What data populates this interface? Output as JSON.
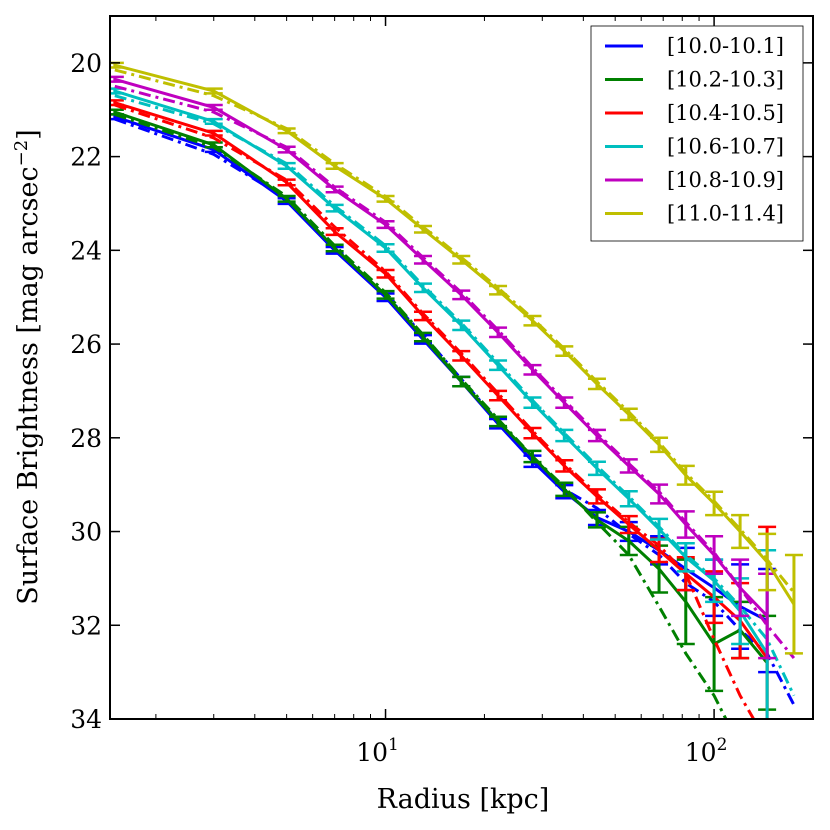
{
  "chart_data": {
    "type": "line",
    "title": "",
    "xlabel": "Radius [kpc]",
    "ylabel": "Surface Brightness [mag arcsec",
    "ylabel_sup": "−2",
    "ylabel_close": "]",
    "x_scale": "log",
    "xlim": [
      1.45,
      200
    ],
    "ylim": [
      34,
      19
    ],
    "y_inverted": true,
    "grid": false,
    "legend_position": "top-right",
    "x_tick_labels": [
      {
        "value": 10,
        "base": "10",
        "exp": "1"
      },
      {
        "value": 100,
        "base": "10",
        "exp": "2"
      }
    ],
    "y_ticks": [
      20,
      22,
      24,
      26,
      28,
      30,
      32,
      34
    ],
    "x": [
      1.5,
      3.0,
      5.0,
      7.0,
      10.0,
      13.0,
      17.0,
      22.0,
      28.0,
      35.0,
      44.0,
      55.0,
      68.0,
      82.0,
      100.0,
      120.0,
      145.0,
      175.0
    ],
    "series": [
      {
        "name": "[10.0-10.1]",
        "color": "#0000ff",
        "values": [
          21.15,
          21.85,
          22.95,
          24.0,
          25.0,
          25.9,
          26.8,
          27.7,
          28.5,
          29.15,
          29.7,
          30.0,
          30.4,
          30.8,
          31.2,
          31.6,
          31.9,
          null
        ],
        "errors": [
          0.05,
          0.05,
          0.06,
          0.07,
          0.08,
          0.09,
          0.1,
          0.1,
          0.12,
          0.14,
          0.16,
          0.2,
          0.3,
          0.45,
          0.6,
          0.9,
          1.1,
          null
        ],
        "dashdot": [
          21.2,
          21.95,
          22.9,
          23.95,
          24.95,
          25.8,
          26.75,
          27.65,
          28.45,
          29.1,
          29.5,
          30.05,
          30.5,
          31.1,
          31.5,
          32.1,
          32.6,
          33.7
        ]
      },
      {
        "name": "[10.2-10.3]",
        "color": "#008000",
        "values": [
          21.05,
          21.75,
          22.9,
          23.95,
          24.95,
          25.85,
          26.8,
          27.65,
          28.4,
          29.1,
          29.75,
          30.2,
          30.8,
          31.5,
          32.4,
          32.1,
          32.8,
          null
        ],
        "errors": [
          0.05,
          0.05,
          0.06,
          0.07,
          0.08,
          0.09,
          0.1,
          0.1,
          0.12,
          0.14,
          0.16,
          0.3,
          0.5,
          0.9,
          1.0,
          0.6,
          1.0,
          null
        ],
        "dashdot": [
          21.1,
          21.8,
          22.85,
          23.9,
          24.9,
          25.8,
          26.75,
          27.6,
          28.4,
          29.05,
          29.8,
          30.5,
          31.6,
          32.6,
          33.5,
          34.6,
          36.0,
          null
        ]
      },
      {
        "name": "[10.4-10.5]",
        "color": "#ff0000",
        "values": [
          20.85,
          21.5,
          22.55,
          23.6,
          24.5,
          25.4,
          26.25,
          27.1,
          27.9,
          28.6,
          29.25,
          29.85,
          30.4,
          30.9,
          31.4,
          31.9,
          32.7,
          null
        ],
        "errors": [
          0.05,
          0.05,
          0.06,
          0.07,
          0.08,
          0.09,
          0.1,
          0.1,
          0.11,
          0.12,
          0.15,
          0.18,
          0.25,
          0.35,
          0.55,
          0.8,
          2.8,
          null
        ],
        "dashdot": [
          20.9,
          21.6,
          22.5,
          23.5,
          24.45,
          25.35,
          26.2,
          27.05,
          27.85,
          28.55,
          29.2,
          29.8,
          30.3,
          30.9,
          32.3,
          33.5,
          34.5,
          null
        ]
      },
      {
        "name": "[10.6-10.7]",
        "color": "#00bfbf",
        "values": [
          20.6,
          21.25,
          22.2,
          23.1,
          23.95,
          24.8,
          25.6,
          26.45,
          27.25,
          27.95,
          28.65,
          29.3,
          29.95,
          30.55,
          31.05,
          31.7,
          32.6,
          null
        ],
        "errors": [
          0.05,
          0.05,
          0.06,
          0.07,
          0.08,
          0.09,
          0.1,
          0.1,
          0.11,
          0.12,
          0.14,
          0.16,
          0.22,
          0.3,
          0.45,
          0.7,
          2.2,
          null
        ],
        "dashdot": [
          20.7,
          21.3,
          22.15,
          23.05,
          23.9,
          24.75,
          25.55,
          26.4,
          27.2,
          27.9,
          28.6,
          29.25,
          29.9,
          30.5,
          31.0,
          31.6,
          32.3,
          33.5
        ]
      },
      {
        "name": "[10.8-10.9]",
        "color": "#bf00bf",
        "values": [
          20.35,
          20.95,
          21.85,
          22.7,
          23.45,
          24.2,
          24.95,
          25.75,
          26.55,
          27.25,
          27.95,
          28.6,
          29.2,
          29.85,
          30.5,
          31.2,
          31.8,
          null
        ],
        "errors": [
          0.05,
          0.05,
          0.06,
          0.06,
          0.07,
          0.08,
          0.09,
          0.1,
          0.1,
          0.11,
          0.12,
          0.14,
          0.2,
          0.28,
          0.4,
          0.6,
          0.9,
          null
        ],
        "dashdot": [
          20.5,
          21.05,
          21.8,
          22.65,
          23.4,
          24.15,
          24.9,
          25.7,
          26.5,
          27.2,
          27.9,
          28.55,
          29.15,
          29.8,
          30.45,
          31.2,
          32.0,
          32.7
        ]
      },
      {
        "name": "[11.0-11.4]",
        "color": "#bfbf00",
        "values": [
          20.05,
          20.6,
          21.45,
          22.2,
          22.9,
          23.55,
          24.2,
          24.85,
          25.5,
          26.15,
          26.85,
          27.5,
          28.15,
          28.8,
          29.4,
          30.0,
          30.65,
          31.55
        ],
        "errors": [
          0.05,
          0.05,
          0.05,
          0.06,
          0.06,
          0.07,
          0.08,
          0.09,
          0.1,
          0.1,
          0.11,
          0.12,
          0.15,
          0.2,
          0.25,
          0.35,
          0.6,
          1.05
        ],
        "dashdot": [
          20.15,
          20.7,
          21.4,
          22.15,
          22.85,
          23.5,
          24.15,
          24.8,
          25.45,
          26.1,
          26.8,
          27.45,
          28.1,
          28.75,
          29.35,
          29.95,
          30.6,
          31.3
        ]
      }
    ]
  }
}
